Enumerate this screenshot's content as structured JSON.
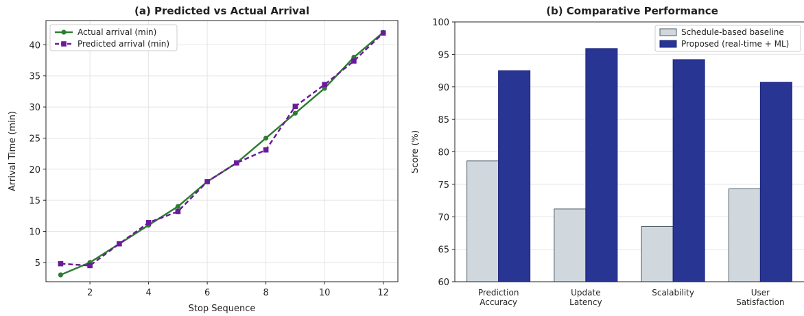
{
  "chart_data": [
    {
      "type": "line",
      "title": "(a) Predicted vs Actual Arrival",
      "xlabel": "Stop Sequence",
      "ylabel": "Arrival Time (min)",
      "xlim": [
        0.5,
        12.5
      ],
      "ylim": [
        1.9,
        43.9
      ],
      "xticks": [
        2,
        4,
        6,
        8,
        10,
        12
      ],
      "yticks": [
        5,
        10,
        15,
        20,
        25,
        30,
        35,
        40
      ],
      "grid": true,
      "legend_position": "top-left",
      "x": [
        1,
        2,
        3,
        4,
        5,
        6,
        7,
        8,
        9,
        10,
        11,
        12
      ],
      "series": [
        {
          "name": "Actual arrival (min)",
          "color": "#2e7d32",
          "marker": "circle",
          "linestyle": "solid",
          "values": [
            3,
            5,
            8,
            11,
            14,
            18,
            21,
            25,
            29,
            33,
            38,
            42
          ]
        },
        {
          "name": "Predicted arrival (min)",
          "color": "#6a1b9a",
          "marker": "square",
          "linestyle": "dashed",
          "values": [
            4.8,
            4.5,
            8.0,
            11.4,
            13.2,
            18.0,
            21.0,
            23.1,
            30.1,
            33.6,
            37.4,
            41.9
          ]
        }
      ]
    },
    {
      "type": "bar",
      "title": "(b) Comparative Performance",
      "xlabel": "",
      "ylabel": "Score (%)",
      "ylim": [
        60,
        100
      ],
      "yticks": [
        60,
        65,
        70,
        75,
        80,
        85,
        90,
        95,
        100
      ],
      "grid": true,
      "legend_position": "top-right",
      "categories": [
        [
          "Prediction",
          "Accuracy"
        ],
        [
          "Update",
          "Latency"
        ],
        [
          "Scalability"
        ],
        [
          "User",
          "Satisfaction"
        ]
      ],
      "series": [
        {
          "name": "Schedule-based baseline",
          "color": "#d0d8de",
          "edge": "#4a5a66",
          "values": [
            78.6,
            71.2,
            68.5,
            74.3
          ]
        },
        {
          "name": "Proposed (real-time + ML)",
          "color": "#283593",
          "edge": "#1a237e",
          "values": [
            92.5,
            95.9,
            94.2,
            90.7
          ]
        }
      ]
    }
  ]
}
